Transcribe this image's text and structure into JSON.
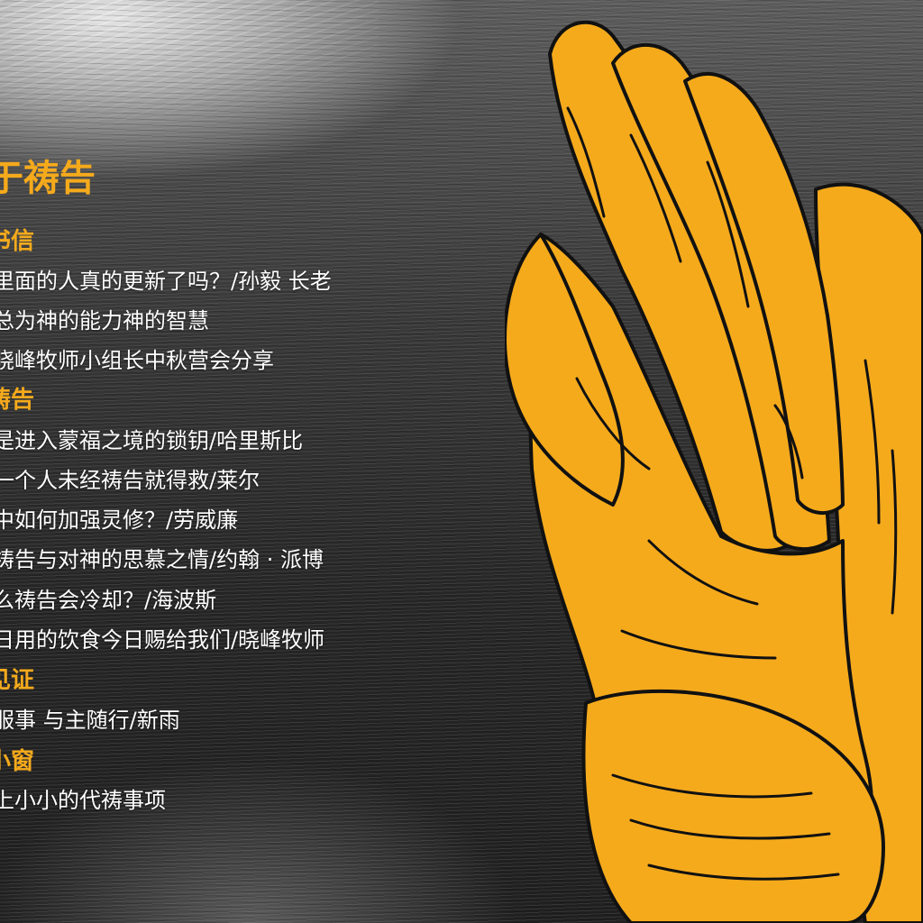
{
  "colors": {
    "accent": "#f5aa1c",
    "text": "#ffffff",
    "background": "#2b2b2b"
  },
  "title": "于祷告",
  "sections": [
    {
      "heading": "书信",
      "items": [
        "里面的人真的更新了吗？/孙毅 长老",
        "总为神的能力神的智慧",
        "晓峰牧师小组长中秋营会分享"
      ]
    },
    {
      "heading": "祷告",
      "items": [
        "是进入蒙福之境的锁钥/哈里斯比",
        "一个人未经祷告就得救/莱尔",
        "中如何加强灵修？/劳威廉",
        "祷告与对神的思慕之情/约翰 · 派博",
        "么祷告会冷却？/海波斯",
        "日用的饮食今日赐给我们/晓峰牧师"
      ]
    },
    {
      "heading": "见证",
      "items": [
        "服事 与主随行/新雨"
      ]
    },
    {
      "heading": "小窗",
      "items": [
        "上小小的代祷事项"
      ]
    }
  ],
  "illustration": {
    "icon": "praying-hands-icon"
  }
}
